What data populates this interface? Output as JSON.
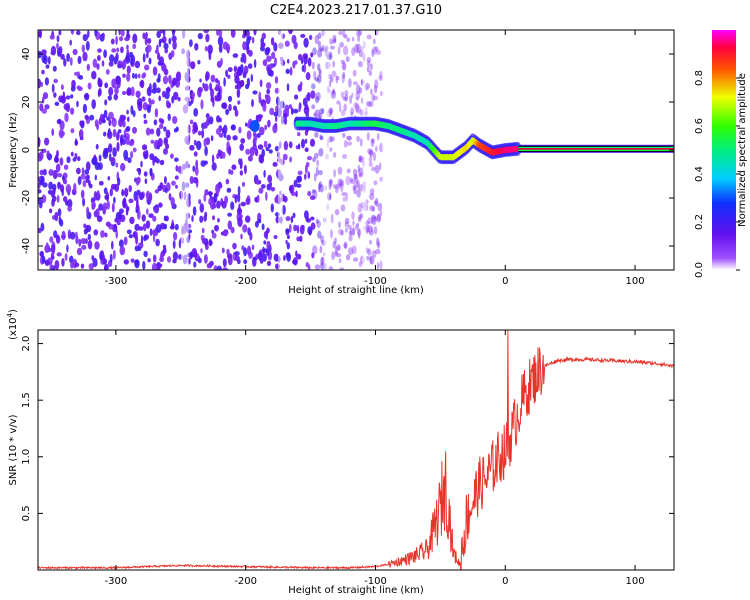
{
  "title": "C2E4.2023.217.01.37.G10",
  "chart_data": [
    {
      "type": "heatmap",
      "xlabel": "Height of straight line (km)",
      "ylabel": "Frequency (Hz)",
      "xlim": [
        -360,
        130
      ],
      "ylim": [
        -50,
        50
      ],
      "xticks": [
        -300,
        -200,
        -100,
        0,
        100
      ],
      "yticks": [
        -40,
        -20,
        0,
        20,
        40
      ],
      "colorbar": {
        "label": "Normalized spectral amplitude",
        "range": [
          0.0,
          1.0
        ],
        "ticks": [
          0.0,
          0.2,
          0.4,
          0.6,
          0.8
        ],
        "colormap": "rainbow (white-violet-blue-cyan-green-yellow-red-magenta)"
      },
      "features": {
        "noise_region_x": [
          -360,
          -95
        ],
        "tone_trace": {
          "x": [
            -160,
            -150,
            -140,
            -130,
            -120,
            -110,
            -100,
            -90,
            -80,
            -70,
            -60,
            -55,
            -50,
            -40,
            -30,
            -25,
            -20,
            -10,
            0,
            10,
            130
          ],
          "y": [
            11,
            11,
            10,
            10,
            11,
            11,
            11,
            10,
            8,
            6,
            3,
            0,
            -3,
            -3,
            1,
            4,
            2,
            -1,
            0,
            0.5,
            0.5
          ],
          "amplitude": [
            0.5,
            0.45,
            0.45,
            0.5,
            0.45,
            0.5,
            0.55,
            0.5,
            0.5,
            0.45,
            0.45,
            0.6,
            0.7,
            0.7,
            0.75,
            0.7,
            0.85,
            0.9,
            0.95,
            0.95,
            0.95
          ]
        }
      },
      "grid": false
    },
    {
      "type": "line",
      "xlabel": "Height of straight line (km)",
      "ylabel": "SNR (10 * v/v)",
      "multiplier": "(x10",
      "multiplier_exp": "4",
      "multiplier_close": ")",
      "xlim": [
        -360,
        130
      ],
      "ylim": [
        0,
        2.12
      ],
      "xticks": [
        -300,
        -200,
        -100,
        0,
        100
      ],
      "yticks": [
        "0.5",
        "1.0",
        "1.5",
        "2.0"
      ],
      "series": [
        {
          "color": "#e8332a",
          "x": [
            -360,
            -300,
            -250,
            -200,
            -150,
            -120,
            -100,
            -90,
            -80,
            -70,
            -60,
            -55,
            -50,
            -47,
            -45,
            -40,
            -35,
            -30,
            -20,
            -15,
            -10,
            -5,
            0,
            5,
            10,
            15,
            20,
            25,
            30,
            40,
            50,
            60,
            80,
            100,
            120,
            130
          ],
          "y": [
            0.02,
            0.02,
            0.04,
            0.03,
            0.02,
            0.02,
            0.03,
            0.05,
            0.08,
            0.12,
            0.18,
            0.35,
            0.55,
            0.75,
            0.7,
            0.15,
            0.05,
            0.45,
            0.75,
            0.8,
            0.9,
            1.0,
            1.05,
            1.2,
            1.4,
            1.55,
            1.65,
            1.75,
            1.8,
            1.85,
            1.86,
            1.86,
            1.85,
            1.84,
            1.82,
            1.8
          ]
        }
      ],
      "grid": false
    }
  ]
}
